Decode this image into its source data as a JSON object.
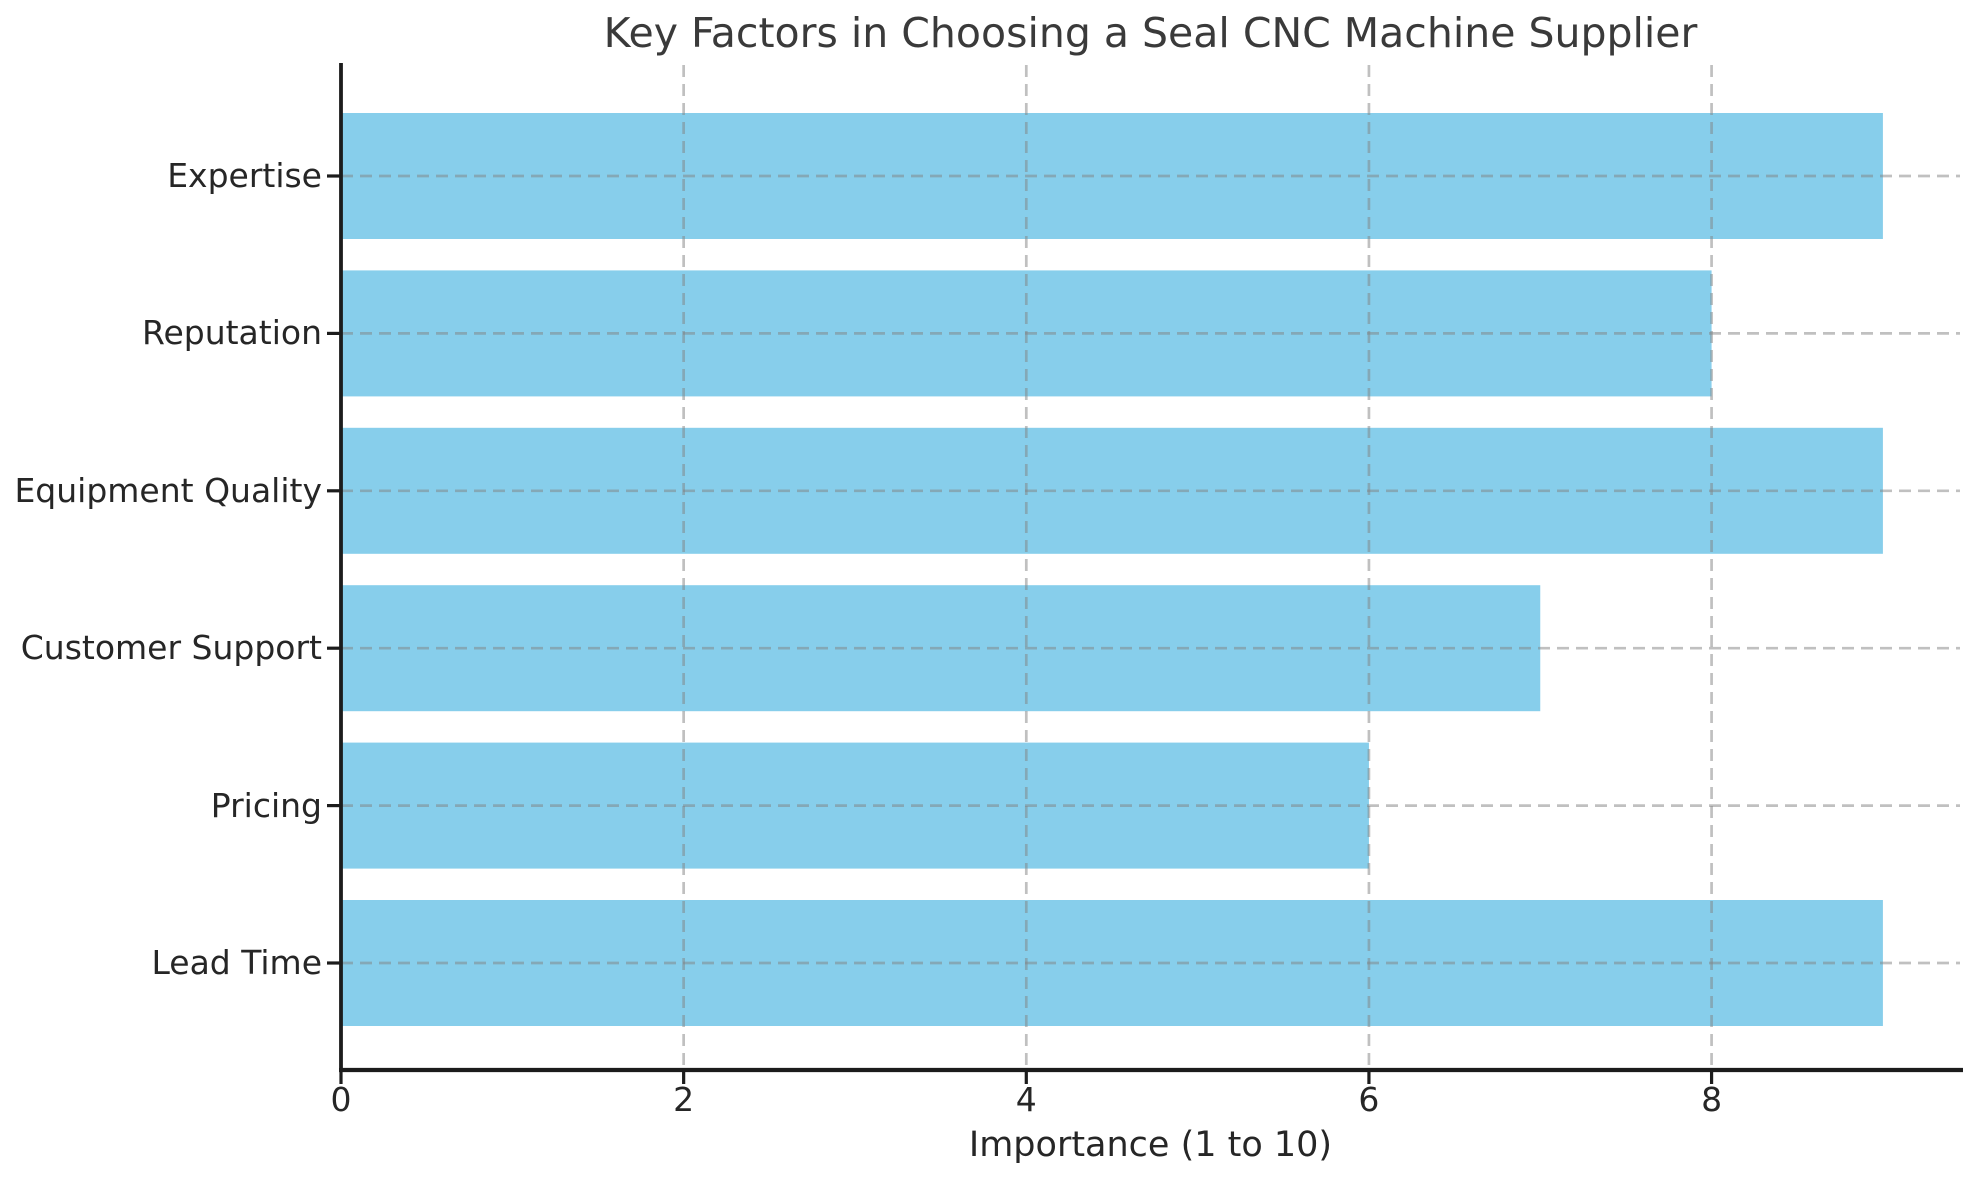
{
  "chart_data": {
    "type": "bar",
    "orientation": "horizontal",
    "title": "Key Factors in Choosing a Seal CNC Machine Supplier",
    "xlabel": "Importance (1 to 10)",
    "ylabel": "",
    "categories": [
      "Expertise",
      "Reputation",
      "Equipment Quality",
      "Customer Support",
      "Pricing",
      "Lead Time"
    ],
    "values": [
      9,
      8,
      9,
      7,
      6,
      9
    ],
    "xticks": [
      0,
      2,
      4,
      6,
      8
    ],
    "xlim": [
      0,
      9.45
    ],
    "grid": "dashed, both axes, drawn over bars",
    "legend_position": "none",
    "colors": {
      "bar": "#87CEEB",
      "grid": "#b0b0b0",
      "axis": "#1c1c1c",
      "tick_text": "#262626",
      "title_text": "#3a3a3a",
      "background": "#ffffff"
    }
  }
}
